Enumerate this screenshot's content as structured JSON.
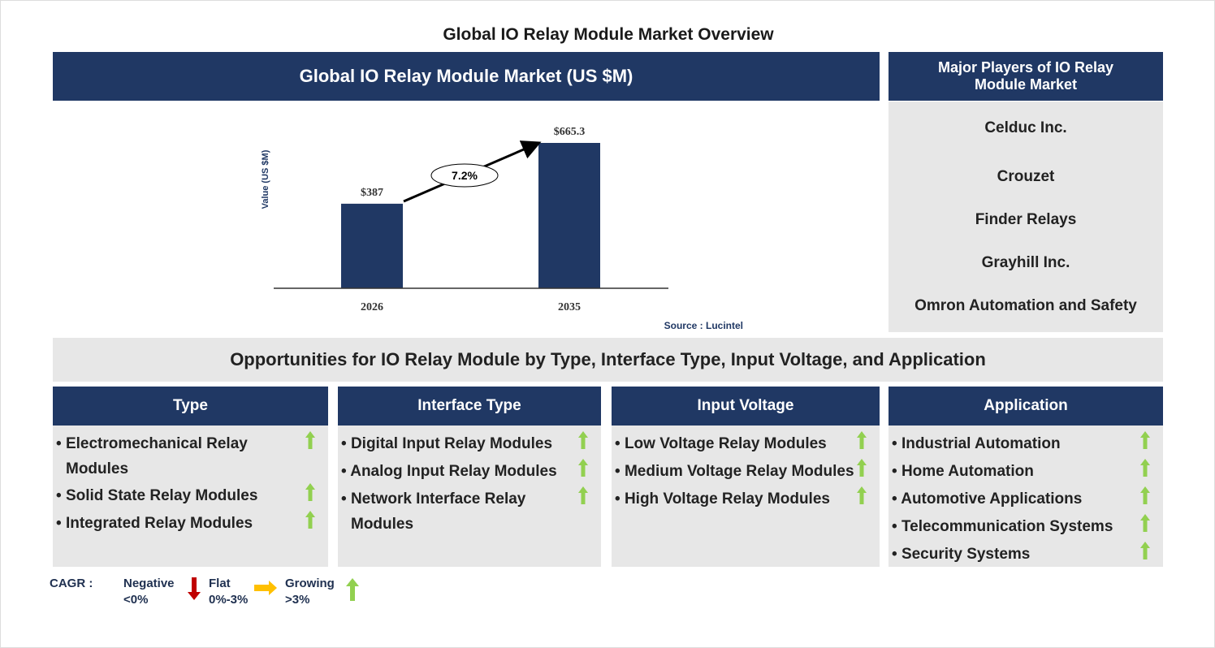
{
  "title": "Global IO Relay Module Market Overview",
  "chart_header": "Global IO Relay Module Market (US $M)",
  "players_header": "Major Players of IO Relay Module Market",
  "players": [
    "Celduc Inc.",
    "Crouzet",
    "Finder Relays",
    "Grayhill Inc.",
    "Omron Automation and Safety"
  ],
  "chart_data": {
    "type": "bar",
    "categories": [
      "2026",
      "2035"
    ],
    "values": [
      387,
      665.3
    ],
    "data_labels": [
      "$387",
      "$665.3"
    ],
    "ylabel": "Value (US $M)",
    "ylim": [
      0,
      665.3
    ],
    "annotation": "7.2%",
    "source": "Source : Lucintel",
    "bar_color": "#203864",
    "grid": false
  },
  "opportunities_header": "Opportunities for IO Relay Module by Type, Interface Type, Input Voltage, and Application",
  "columns": [
    {
      "header": "Type",
      "items": [
        "Electromechanical Relay Modules",
        "Solid State Relay Modules",
        "Integrated Relay Modules"
      ]
    },
    {
      "header": "Interface Type",
      "items": [
        "Digital Input Relay Modules",
        "Analog Input Relay Modules",
        "Network Interface Relay Modules"
      ]
    },
    {
      "header": "Input Voltage",
      "items": [
        "Low Voltage Relay Modules",
        "Medium Voltage Relay Modules",
        "High Voltage Relay Modules"
      ]
    },
    {
      "header": "Application",
      "items": [
        "Industrial Automation",
        "Home Automation",
        "Automotive Applications",
        "Telecommunication Systems",
        "Security Systems"
      ]
    }
  ],
  "legend": {
    "label": "CAGR :",
    "negative": "Negative",
    "negative_range": "<0%",
    "flat": "Flat",
    "flat_range": "0%-3%",
    "growing": "Growing",
    "growing_range": ">3%"
  },
  "colors": {
    "navy": "#203864",
    "growing": "#92d050",
    "flat": "#ffc000",
    "negative": "#c00000"
  }
}
